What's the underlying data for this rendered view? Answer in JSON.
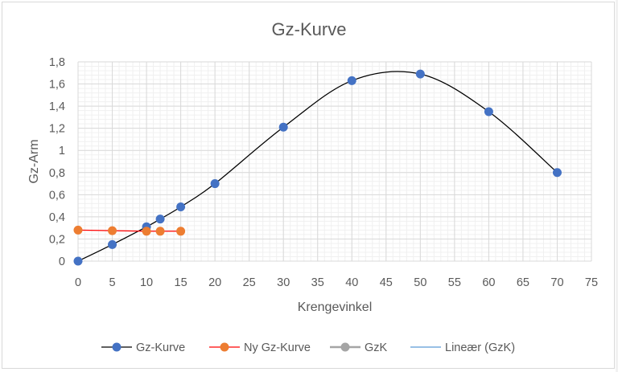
{
  "chart_data": {
    "type": "scatter",
    "title": "Gz-Kurve",
    "xlabel": "Krengevinkel",
    "ylabel": "Gz-Arm",
    "xlim": [
      0,
      75
    ],
    "ylim": [
      0,
      1.8
    ],
    "x_ticks": [
      "0",
      "5",
      "10",
      "15",
      "20",
      "25",
      "30",
      "35",
      "40",
      "45",
      "50",
      "55",
      "60",
      "65",
      "70",
      "75"
    ],
    "y_ticks": [
      "0",
      "0,2",
      "0,4",
      "0,6",
      "0,8",
      "1",
      "1,2",
      "1,4",
      "1,6",
      "1,8"
    ],
    "grid": {
      "major": true,
      "minor": true
    },
    "legend_position": "bottom",
    "series": [
      {
        "name": "Gz-Kurve",
        "line_color": "#000000",
        "marker_color": "#4472C4",
        "smooth": true,
        "x": [
          0,
          5,
          10,
          12,
          15,
          20,
          30,
          40,
          50,
          60,
          70
        ],
        "y": [
          0,
          0.15,
          0.31,
          0.38,
          0.49,
          0.7,
          1.21,
          1.63,
          1.69,
          1.35,
          0.8
        ]
      },
      {
        "name": "Ny Gz-Kurve",
        "line_color": "#FF0000",
        "marker_color": "#ED7D31",
        "smooth": false,
        "x": [
          0,
          5,
          10,
          12,
          15
        ],
        "y": [
          0.28,
          0.275,
          0.27,
          0.27,
          0.27
        ]
      },
      {
        "name": "GzK",
        "line_color": "#A5A5A5",
        "marker_color": "#A5A5A5",
        "x": [],
        "y": []
      },
      {
        "name": "Lineær (GzK)",
        "line_color": "#5B9BD5",
        "marker_color": null,
        "trendline": true,
        "x": [],
        "y": []
      }
    ]
  },
  "legend": [
    {
      "label": "Gz-Kurve",
      "line": "#000000",
      "marker": "#4472C4"
    },
    {
      "label": "Ny Gz-Kurve",
      "line": "#FF0000",
      "marker": "#ED7D31"
    },
    {
      "label": "GzK",
      "line": "#A5A5A5",
      "marker": "#A5A5A5"
    },
    {
      "label": "Lineær (GzK)",
      "line": "#5B9BD5",
      "marker": null
    }
  ]
}
